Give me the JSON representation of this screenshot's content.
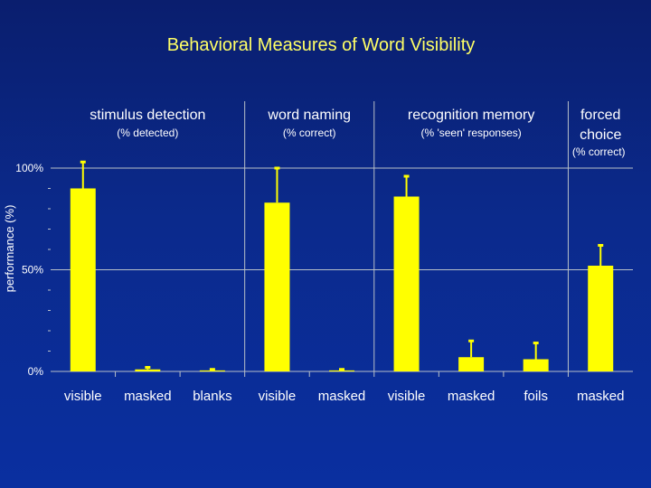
{
  "chart_data": {
    "type": "bar",
    "title": "Behavioral Measures of Word Visibility",
    "ylabel": "performance (%)",
    "ylim": [
      0,
      100
    ],
    "yticks": [
      {
        "value": 0,
        "label": "0%"
      },
      {
        "value": 50,
        "label": "50%"
      },
      {
        "value": 100,
        "label": "100%"
      }
    ],
    "groups": [
      {
        "title": "stimulus detection",
        "subtitle": "(% detected)",
        "categories": [
          "visible",
          "masked",
          "blanks"
        ]
      },
      {
        "title": "word naming",
        "subtitle": "(% correct)",
        "categories": [
          "visible",
          "masked"
        ]
      },
      {
        "title": "recognition memory",
        "subtitle": "(% 'seen' responses)",
        "categories": [
          "visible",
          "masked",
          "foils"
        ]
      },
      {
        "title": "forced choice",
        "subtitle": "(% correct)",
        "categories": [
          "masked"
        ]
      }
    ],
    "categories": [
      "visible",
      "masked",
      "blanks",
      "visible",
      "masked",
      "visible",
      "masked",
      "foils",
      "masked"
    ],
    "values": [
      90,
      1,
      0.5,
      83,
      0.5,
      86,
      7,
      6,
      52
    ],
    "errors": [
      13,
      1,
      0.5,
      17,
      0.5,
      10,
      8,
      8,
      10
    ],
    "colors": {
      "bar": "#ffff00",
      "grid": "#b8c0c8",
      "title": "#ffff66",
      "text": "#ffffff"
    }
  }
}
